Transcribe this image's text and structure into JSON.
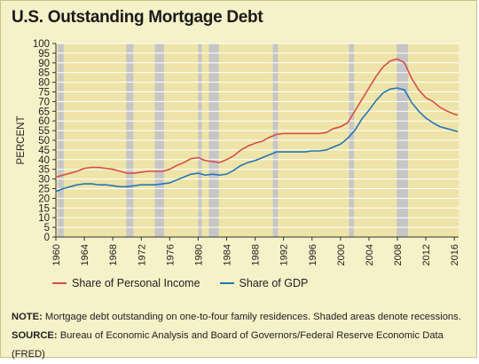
{
  "title": "U.S. Outstanding Mortgage Debt",
  "legend": {
    "income": "Share of Personal Income",
    "gdp": "Share of GDP"
  },
  "note": {
    "label": "NOTE:",
    "text": " Mortgage debt outstanding on one-to-four family residences. Shaded areas denote recessions."
  },
  "source": {
    "label": "SOURCE:",
    "text": " Bureau of Economic Analysis and Board of Governors/Federal Reserve Economic Data (FRED)"
  },
  "colors": {
    "income": "#d64e48",
    "gdp": "#2576b5",
    "plot_bg": "#eee4a8",
    "recession": "#c6c6c6",
    "card_bg": "#f5f1c8"
  },
  "chart_data": {
    "type": "line",
    "title": "U.S. Outstanding Mortgage Debt",
    "xlabel": "",
    "ylabel": "PERCENT",
    "xlim": [
      1960,
      2016.6
    ],
    "ylim": [
      0,
      100
    ],
    "xticks": [
      1960,
      1964,
      1968,
      1972,
      1976,
      1980,
      1984,
      1988,
      1992,
      1996,
      2000,
      2004,
      2008,
      2012,
      2016
    ],
    "yticks": [
      0,
      5,
      10,
      15,
      20,
      25,
      30,
      35,
      40,
      45,
      50,
      55,
      60,
      65,
      70,
      75,
      80,
      85,
      90,
      95,
      100
    ],
    "grid": "horizontal",
    "legend_position": "bottom",
    "recessions": [
      [
        1960.3,
        1961.1
      ],
      [
        1969.9,
        1970.9
      ],
      [
        1973.9,
        1975.2
      ],
      [
        1980.0,
        1980.5
      ],
      [
        1981.5,
        1982.9
      ],
      [
        1990.5,
        1991.2
      ],
      [
        2001.2,
        2001.9
      ],
      [
        2007.9,
        2009.5
      ]
    ],
    "series": [
      {
        "name": "Share of Personal Income",
        "x": [
          1960,
          1961,
          1962,
          1963,
          1964,
          1965,
          1966,
          1967,
          1968,
          1969,
          1970,
          1971,
          1972,
          1973,
          1974,
          1975,
          1976,
          1977,
          1978,
          1979,
          1980,
          1981,
          1982,
          1983,
          1984,
          1985,
          1986,
          1987,
          1988,
          1989,
          1990,
          1991,
          1992,
          1993,
          1994,
          1995,
          1996,
          1997,
          1998,
          1999,
          2000,
          2001,
          2002,
          2003,
          2004,
          2005,
          2006,
          2007,
          2008,
          2009,
          2010,
          2011,
          2012,
          2013,
          2014,
          2015,
          2016,
          2016.5
        ],
        "values": [
          31,
          32,
          33,
          34,
          35.5,
          36,
          36,
          35.5,
          35,
          34,
          33,
          33,
          33.5,
          34,
          34,
          34,
          35,
          37,
          38.5,
          40.5,
          41,
          39.5,
          39,
          38.5,
          40,
          42,
          45,
          47,
          48.5,
          49.5,
          51.5,
          53,
          53.5,
          53.5,
          53.5,
          53.5,
          53.5,
          53.5,
          54,
          56,
          57,
          59,
          65,
          71,
          77,
          83,
          88,
          91,
          92,
          90,
          82,
          76,
          72,
          70,
          67,
          65,
          63.5,
          63
        ]
      },
      {
        "name": "Share of GDP",
        "x": [
          1960,
          1961,
          1962,
          1963,
          1964,
          1965,
          1966,
          1967,
          1968,
          1969,
          1970,
          1971,
          1972,
          1973,
          1974,
          1975,
          1976,
          1977,
          1978,
          1979,
          1980,
          1981,
          1982,
          1983,
          1984,
          1985,
          1986,
          1987,
          1988,
          1989,
          1990,
          1991,
          1992,
          1993,
          1994,
          1995,
          1996,
          1997,
          1998,
          1999,
          2000,
          2001,
          2002,
          2003,
          2004,
          2005,
          2006,
          2007,
          2008,
          2009,
          2010,
          2011,
          2012,
          2013,
          2014,
          2015,
          2016,
          2016.5
        ],
        "values": [
          23.5,
          25,
          26,
          27,
          27.5,
          27.5,
          27,
          27,
          26.5,
          26,
          26,
          26.5,
          27,
          27,
          27,
          27.5,
          28,
          29.5,
          31,
          32.5,
          33,
          32,
          32.5,
          32,
          32.5,
          34.5,
          37,
          38.5,
          39.5,
          41,
          42.5,
          44,
          44,
          44,
          44,
          44,
          44.5,
          44.5,
          45,
          46.5,
          48,
          51,
          55,
          61,
          65.5,
          70.5,
          74.5,
          76.5,
          77,
          76,
          69.5,
          65,
          61.5,
          59,
          57,
          56,
          55,
          54.5
        ]
      }
    ]
  }
}
